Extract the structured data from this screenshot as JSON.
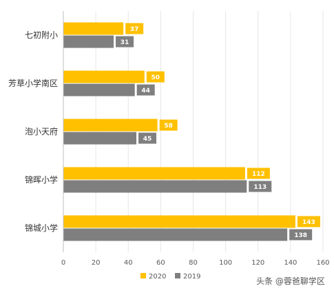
{
  "chart_data": {
    "type": "bar",
    "orientation": "horizontal",
    "categories": [
      "七初附小",
      "芳草小学南区",
      "泡小天府",
      "锦晖小学",
      "锦城小学"
    ],
    "series": [
      {
        "name": "2020",
        "color": "#ffc000",
        "values": [
          37,
          50,
          58,
          112,
          143
        ]
      },
      {
        "name": "2019",
        "color": "#7f7f7f",
        "values": [
          31,
          44,
          45,
          113,
          138
        ]
      }
    ],
    "xlim": [
      0,
      160
    ],
    "xticks": [
      0,
      20,
      40,
      60,
      80,
      100,
      120,
      140,
      160
    ],
    "grid": true,
    "legend_position": "bottom",
    "data_labels": true
  },
  "watermark": "头条 @蓉爸聊学区"
}
